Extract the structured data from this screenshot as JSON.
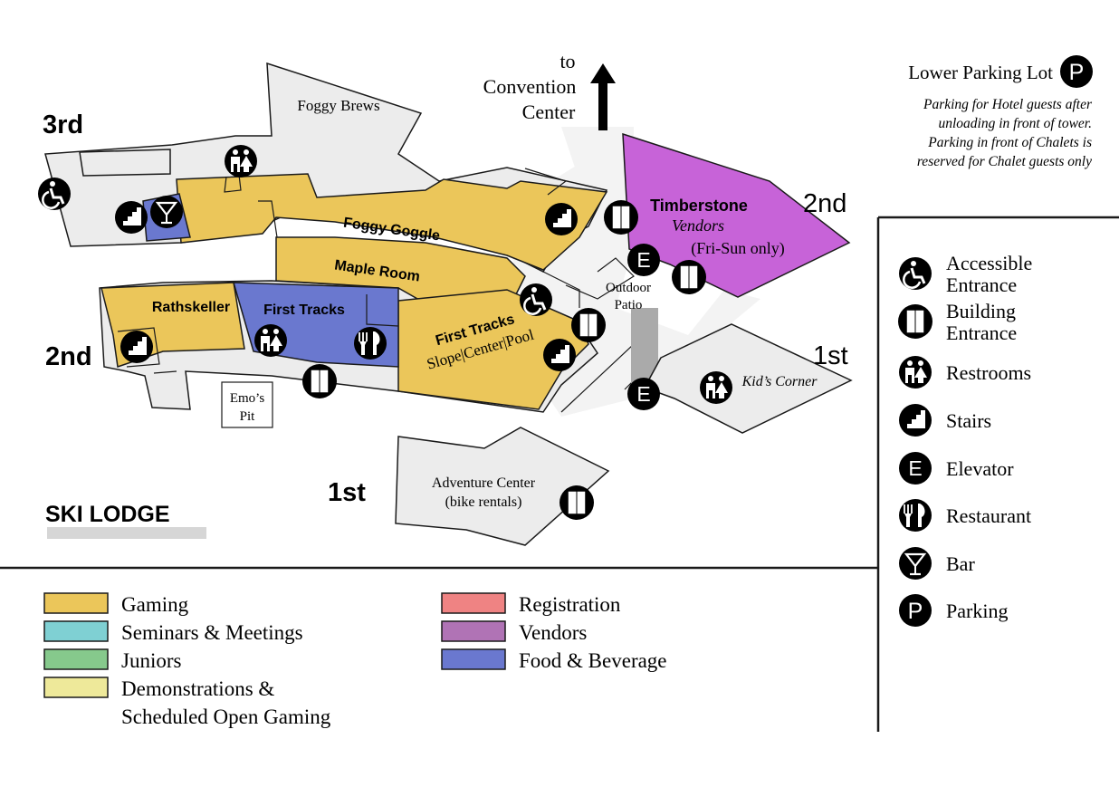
{
  "map": {
    "title": "SKI LODGE",
    "to_convention": [
      "to",
      "Convention",
      "Center"
    ],
    "floor_labels": {
      "third": "3rd",
      "second_left": "2nd",
      "second_right": "2nd",
      "first_bottom": "1st",
      "first_right": "1st"
    },
    "rooms": {
      "foggy_brews": "Foggy Brews",
      "foggy_goggle": "Foggy Goggle",
      "maple_room": "Maple Room",
      "rathskeller": "Rathskeller",
      "first_tracks_fb": "First Tracks",
      "first_tracks_gaming": "First Tracks",
      "first_tracks_sub": "Slope|Center|Pool",
      "timberstone": "Timberstone",
      "timberstone_vendors": "Vendors",
      "timberstone_days": "(Fri-Sun only)",
      "outdoor_patio": [
        "Outdoor",
        "Patio"
      ],
      "kids_corner": "Kid’s Corner",
      "emos_pit": [
        "Emo’s",
        "Pit"
      ],
      "adventure_center": [
        "Adventure Center",
        "(bike rentals)"
      ]
    }
  },
  "parking": {
    "title": "Lower Parking Lot",
    "note": [
      "Parking for Hotel guests after",
      "unloading in front of tower.",
      "Parking in front of Chalets is",
      "reserved for Chalet guests only"
    ]
  },
  "icon_legend": [
    {
      "icon": "accessible-icon",
      "label": [
        "Accessible",
        "Entrance"
      ]
    },
    {
      "icon": "building-entrance-icon",
      "label": [
        "Building",
        "Entrance"
      ]
    },
    {
      "icon": "restrooms-icon",
      "label": [
        "Restrooms"
      ]
    },
    {
      "icon": "stairs-icon",
      "label": [
        "Stairs"
      ]
    },
    {
      "icon": "elevator-icon",
      "label": [
        "Elevator"
      ]
    },
    {
      "icon": "restaurant-icon",
      "label": [
        "Restaurant"
      ]
    },
    {
      "icon": "bar-icon",
      "label": [
        "Bar"
      ]
    },
    {
      "icon": "parking-icon",
      "label": [
        "Parking"
      ]
    }
  ],
  "color_legend": [
    {
      "label": "Gaming",
      "color": "#ebc65a"
    },
    {
      "label": "Seminars & Meetings",
      "color": "#7fd0d3"
    },
    {
      "label": "Juniors",
      "color": "#86c98c"
    },
    {
      "label": "Demonstrations &",
      "label2": "Scheduled Open Gaming",
      "color": "#eee99a"
    },
    {
      "label": "Registration",
      "color": "#ef8383"
    },
    {
      "label": "Vendors",
      "color": "#b073b5"
    },
    {
      "label": "Food & Beverage",
      "color": "#6a78cf"
    }
  ],
  "colors": {
    "gaming": "#ebc65a",
    "food": "#6a78cf",
    "vendors_room": "#c763d8",
    "building": "#ececec",
    "outline": "#1a1a1a"
  }
}
